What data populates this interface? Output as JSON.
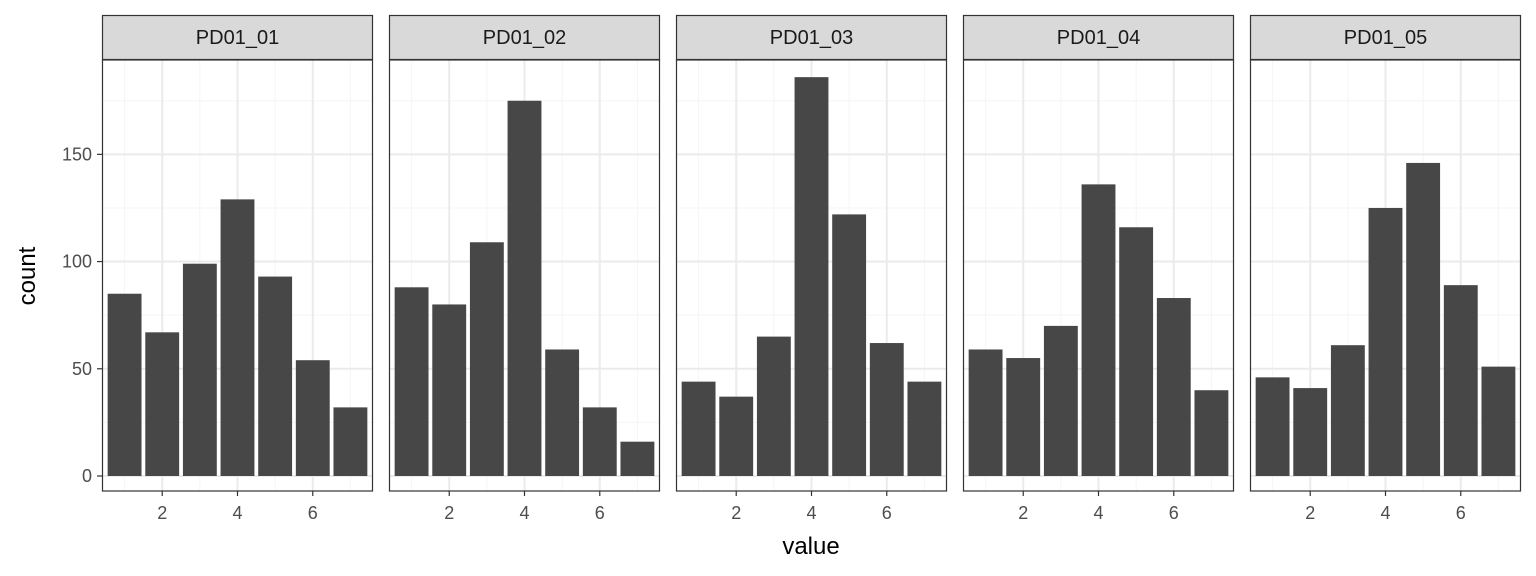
{
  "chart_data": {
    "type": "bar",
    "facet_label": "PD01",
    "xlabel": "value",
    "ylabel": "count",
    "x_values": [
      1,
      2,
      3,
      4,
      5,
      6,
      7
    ],
    "xlim": [
      0.4,
      7.6
    ],
    "ylim": [
      -7,
      194
    ],
    "x_ticks": [
      2,
      4,
      6
    ],
    "x_minor_ticks": [
      1,
      3,
      5,
      7
    ],
    "y_ticks": [
      0,
      50,
      100,
      150
    ],
    "y_minor_ticks": [
      25,
      75,
      125,
      175
    ],
    "grid": true,
    "theme": "bw",
    "colors": {
      "bar": "#474747",
      "strip_fill": "#d9d9d9",
      "panel_border": "#333333",
      "grid_major": "#ebebeb",
      "grid_minor": "#f5f5f5"
    },
    "panels": [
      {
        "title": "PD01_01",
        "values": [
          85,
          67,
          99,
          129,
          93,
          54,
          32
        ]
      },
      {
        "title": "PD01_02",
        "values": [
          88,
          80,
          109,
          175,
          59,
          32,
          16
        ]
      },
      {
        "title": "PD01_03",
        "values": [
          44,
          37,
          65,
          186,
          122,
          62,
          44
        ]
      },
      {
        "title": "PD01_04",
        "values": [
          59,
          55,
          70,
          136,
          116,
          83,
          40
        ]
      },
      {
        "title": "PD01_05",
        "values": [
          46,
          41,
          61,
          125,
          146,
          89,
          51
        ]
      }
    ]
  }
}
